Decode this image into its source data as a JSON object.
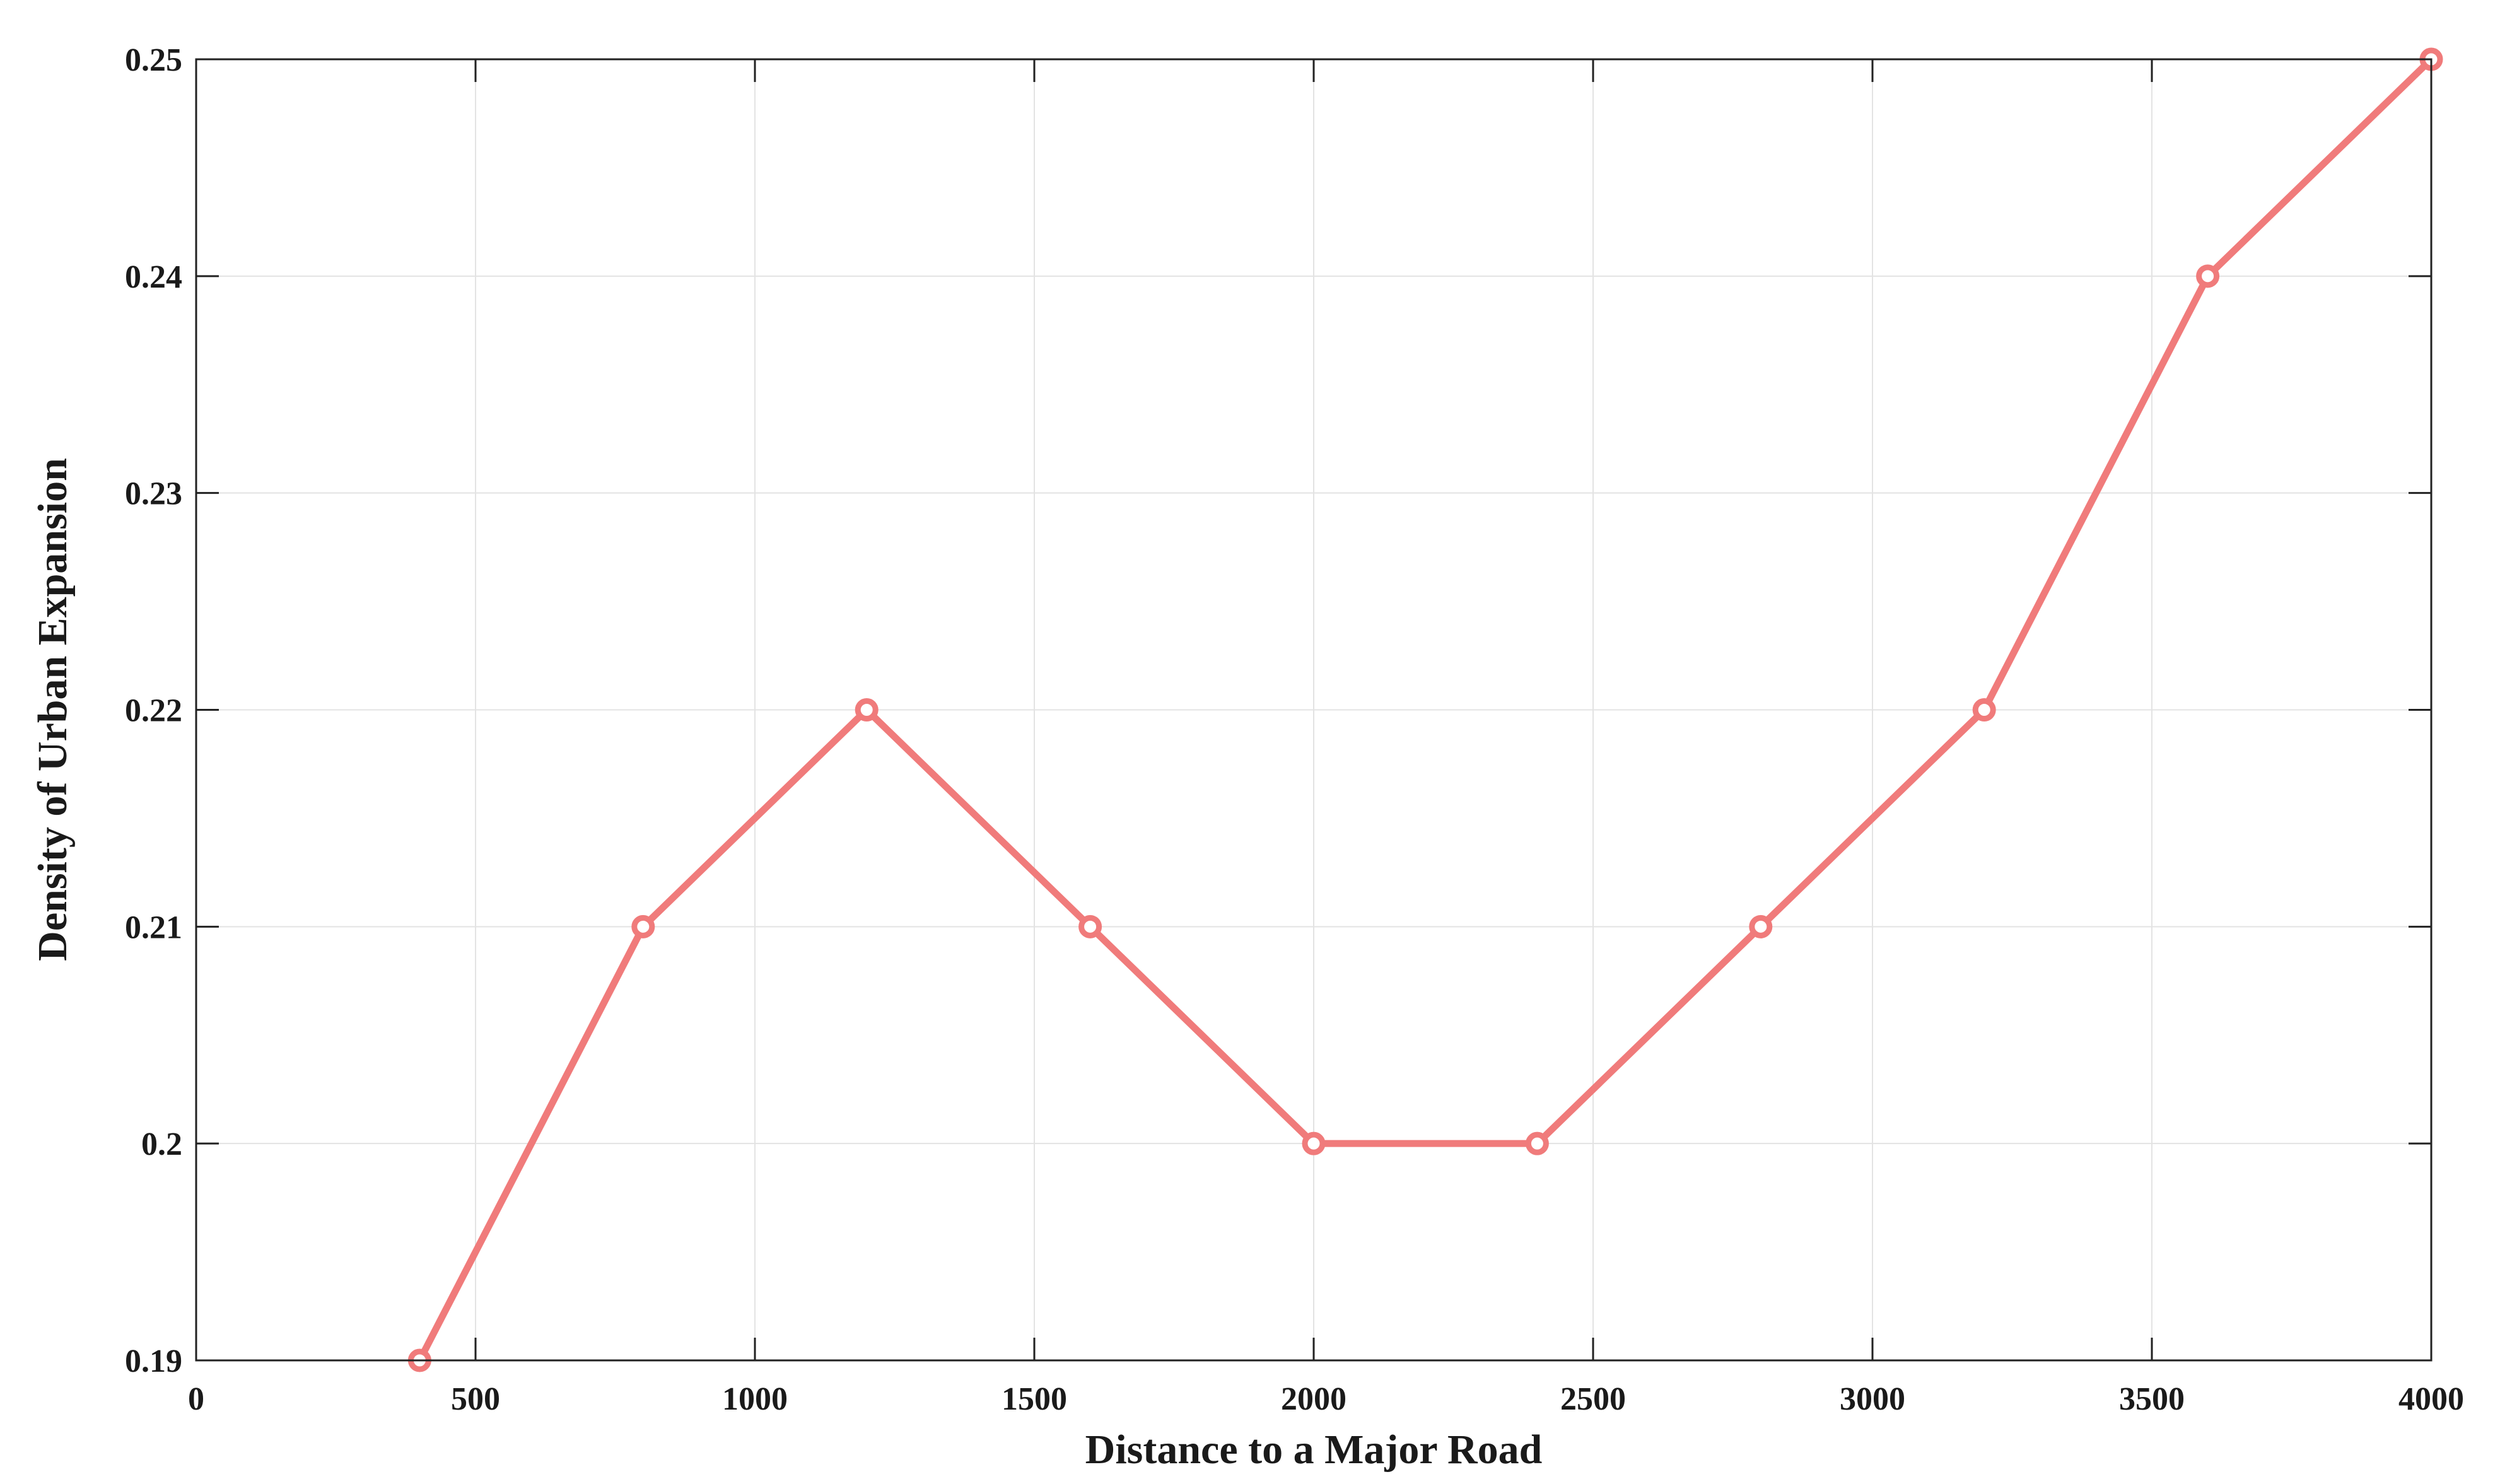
{
  "chart_data": {
    "type": "line",
    "x_label": "Distance to a Major Road",
    "y_label": "Density of Urban Expansion",
    "x": [
      400,
      800,
      1200,
      1600,
      2000,
      2400,
      2800,
      3200,
      3600,
      4000
    ],
    "series": [
      {
        "color": "#f07b7b",
        "values": [
          0.19,
          0.21,
          0.22,
          0.21,
          0.2,
          0.2,
          0.21,
          0.22,
          0.24,
          0.25
        ]
      }
    ],
    "xlim": [
      0,
      4000
    ],
    "xticks": [
      0,
      500,
      1000,
      1500,
      2000,
      2500,
      3000,
      3500,
      4000
    ],
    "ylim": [
      0.19,
      0.25
    ],
    "yticks": [
      0.19,
      0.2,
      0.21,
      0.22,
      0.23,
      0.24,
      0.25
    ],
    "grid": true
  }
}
